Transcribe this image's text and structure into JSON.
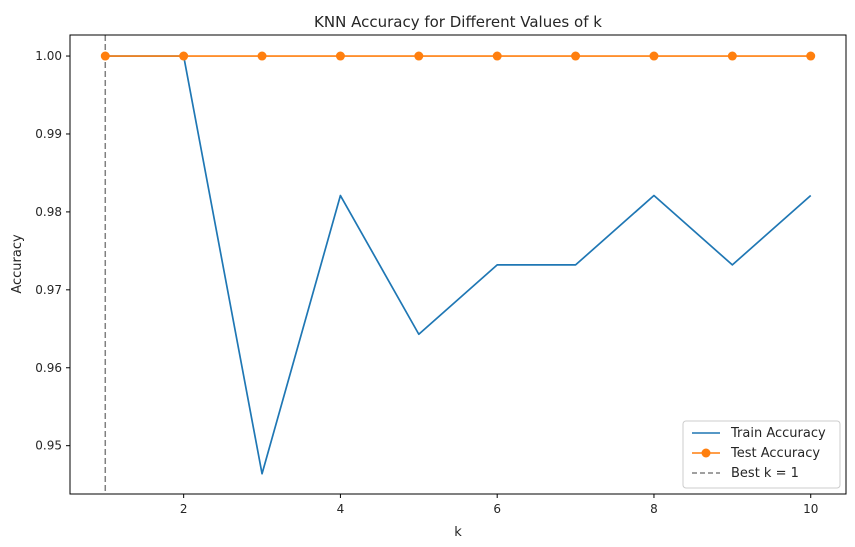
{
  "chart_data": {
    "type": "line",
    "title": "KNN Accuracy for Different Values of k",
    "xlabel": "k",
    "ylabel": "Accuracy",
    "xlim": [
      0.55,
      10.45
    ],
    "ylim": [
      0.9438,
      1.0027
    ],
    "x_ticks": [
      2,
      4,
      6,
      8,
      10
    ],
    "y_ticks": [
      0.95,
      0.96,
      0.97,
      0.98,
      0.99,
      1.0
    ],
    "y_tick_labels": [
      "0.95",
      "0.96",
      "0.97",
      "0.98",
      "0.99",
      "1.00"
    ],
    "x": [
      1,
      2,
      3,
      4,
      5,
      6,
      7,
      8,
      9,
      10
    ],
    "series": [
      {
        "name": "Train Accuracy",
        "color": "#1f77b4",
        "marker": "none",
        "values": [
          1.0,
          1.0,
          0.9464,
          0.9821,
          0.9643,
          0.9732,
          0.9732,
          0.9821,
          0.9732,
          0.9821
        ]
      },
      {
        "name": "Test Accuracy",
        "color": "#ff7f0e",
        "marker": "circle",
        "values": [
          1.0,
          1.0,
          1.0,
          1.0,
          1.0,
          1.0,
          1.0,
          1.0,
          1.0,
          1.0
        ]
      }
    ],
    "vline": {
      "x": 1,
      "label": "Best k = 1",
      "color": "#808080",
      "style": "dashed"
    },
    "grid": false,
    "legend_position": "lower-right"
  }
}
